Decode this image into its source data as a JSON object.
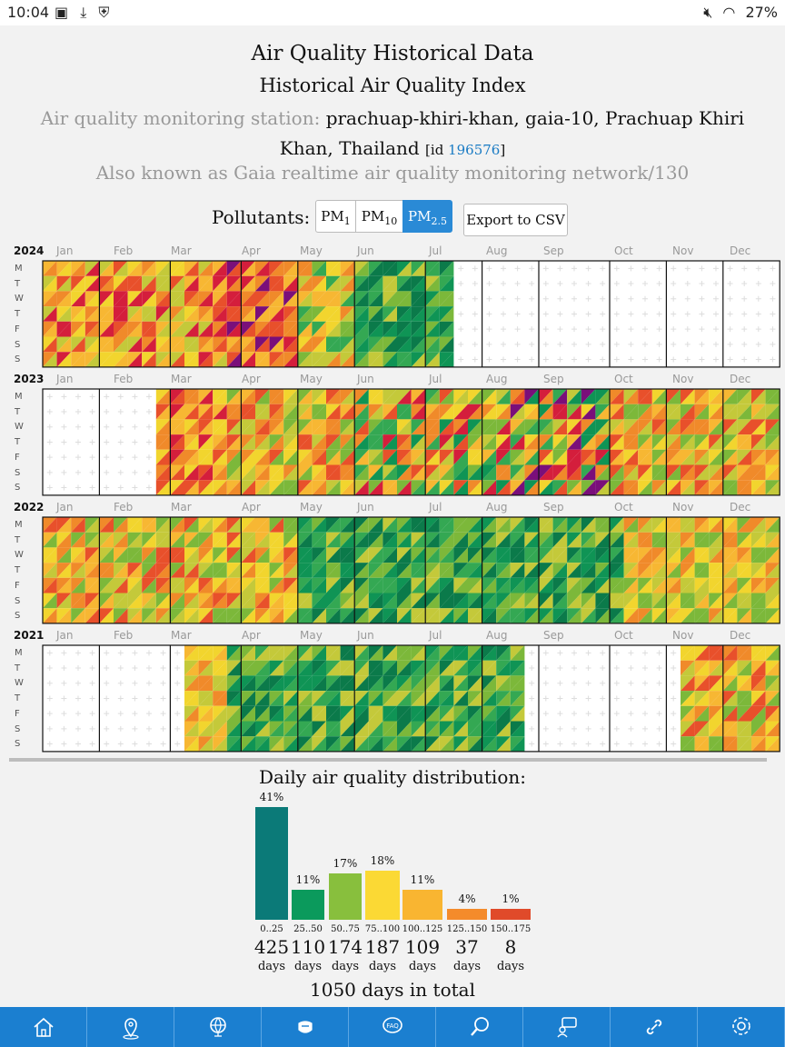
{
  "status_bar": {
    "time": "10:04",
    "battery": "27%",
    "left_icons": [
      "gallery-icon",
      "download-icon",
      "shield-icon"
    ],
    "right_icons": [
      "mute-icon",
      "wifi-icon"
    ]
  },
  "header": {
    "title": "Air Quality Historical Data",
    "subtitle": "Historical Air Quality Index",
    "station_prefix": "Air quality monitoring station:",
    "station_name": "prachuap-khiri-khan, gaia-10, Prachuap Khiri Khan, Thailand",
    "id_prefix": "[id ",
    "id_value": "196576",
    "id_suffix": "]",
    "aka": "Also known as Gaia realtime air quality monitoring network/130"
  },
  "pollutants": {
    "label": "Pollutants:",
    "selected": "PM2.5",
    "options": [
      {
        "base": "PM",
        "sub": "1"
      },
      {
        "base": "PM",
        "sub": "10"
      },
      {
        "base": "PM",
        "sub": "2.5"
      }
    ],
    "export_label": "Export to CSV"
  },
  "calendar": {
    "months": [
      "Jan",
      "Feb",
      "Mar",
      "Apr",
      "May",
      "Jun",
      "Jul",
      "Aug",
      "Sep",
      "Oct",
      "Nov",
      "Dec"
    ],
    "days": [
      "M",
      "T",
      "W",
      "T",
      "F",
      "S",
      "S"
    ],
    "years": [
      "2024",
      "2023",
      "2022",
      "2021"
    ]
  },
  "distribution": {
    "title": "Daily air quality distribution:",
    "days_unit": "days",
    "total": "1050 days in total",
    "bins": [
      {
        "range": "0..25",
        "pct": "41%",
        "days": "425",
        "color": "#0b7a78",
        "frac": 0.41
      },
      {
        "range": "25..50",
        "pct": "11%",
        "days": "110",
        "color": "#0b9a5c",
        "frac": 0.11
      },
      {
        "range": "50..75",
        "pct": "17%",
        "days": "174",
        "color": "#88bf3d",
        "frac": 0.17
      },
      {
        "range": "75..100",
        "pct": "18%",
        "days": "187",
        "color": "#fbd934",
        "frac": 0.18
      },
      {
        "range": "100..125",
        "pct": "11%",
        "days": "109",
        "color": "#f9b531",
        "frac": 0.11
      },
      {
        "range": "125..150",
        "pct": "4%",
        "days": "37",
        "color": "#f48b2b",
        "frac": 0.04
      },
      {
        "range": "150..175",
        "pct": "1%",
        "days": "8",
        "color": "#e04a2a",
        "frac": 0.01
      }
    ]
  },
  "nav": {
    "items": [
      "home-icon",
      "location-icon",
      "globe-icon",
      "mask-icon",
      "faq-icon",
      "search-icon",
      "feedback-icon",
      "link-icon",
      "settings-icon"
    ]
  }
}
